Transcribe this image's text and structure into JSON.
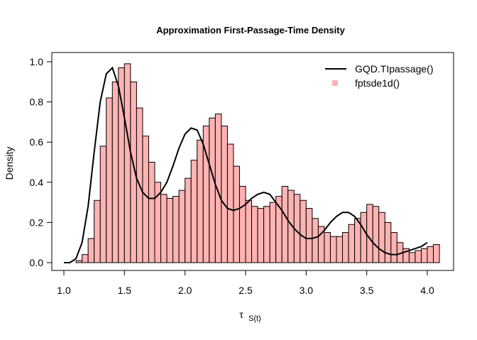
{
  "chart_data": {
    "type": "bar",
    "title": "Approximation First-Passage-Time Density",
    "xlabel": "τ",
    "xlabel_sub": "S(t)",
    "ylabel": "Density",
    "xlim": [
      1.0,
      4.0
    ],
    "ylim": [
      0.0,
      1.0
    ],
    "x_ticks": [
      "1.0",
      "1.5",
      "2.0",
      "2.5",
      "3.0",
      "3.5",
      "4.0"
    ],
    "y_ticks": [
      "0.0",
      "0.2",
      "0.4",
      "0.6",
      "0.8",
      "1.0"
    ],
    "legend_position": "top-right",
    "grid": false,
    "histogram": {
      "name": "fptsde1d()",
      "color": "#ffb3b3",
      "edge_color": "#000000",
      "bin_start": 1.0,
      "bin_width": 0.05,
      "values": [
        0.0,
        0.0,
        0.01,
        0.04,
        0.12,
        0.31,
        0.58,
        0.82,
        0.9,
        0.97,
        0.99,
        0.9,
        0.77,
        0.63,
        0.5,
        0.4,
        0.34,
        0.32,
        0.33,
        0.36,
        0.42,
        0.51,
        0.61,
        0.68,
        0.72,
        0.74,
        0.68,
        0.59,
        0.48,
        0.38,
        0.31,
        0.28,
        0.27,
        0.28,
        0.3,
        0.33,
        0.38,
        0.36,
        0.34,
        0.31,
        0.27,
        0.22,
        0.18,
        0.15,
        0.13,
        0.13,
        0.15,
        0.19,
        0.22,
        0.25,
        0.29,
        0.28,
        0.25,
        0.2,
        0.15,
        0.1,
        0.07,
        0.05,
        0.06,
        0.07,
        0.08,
        0.09
      ]
    },
    "series": [
      {
        "name": "GQD.TIpassage()",
        "color": "#000000",
        "x": [
          1.0,
          1.05,
          1.1,
          1.15,
          1.2,
          1.25,
          1.3,
          1.35,
          1.4,
          1.45,
          1.5,
          1.55,
          1.6,
          1.65,
          1.7,
          1.75,
          1.8,
          1.85,
          1.9,
          1.95,
          2.0,
          2.05,
          2.1,
          2.15,
          2.2,
          2.25,
          2.3,
          2.35,
          2.4,
          2.45,
          2.5,
          2.55,
          2.6,
          2.65,
          2.7,
          2.75,
          2.8,
          2.85,
          2.9,
          2.95,
          3.0,
          3.05,
          3.1,
          3.15,
          3.2,
          3.25,
          3.3,
          3.35,
          3.4,
          3.45,
          3.5,
          3.55,
          3.6,
          3.65,
          3.7,
          3.75,
          3.8,
          3.85,
          3.9,
          3.95,
          4.0
        ],
        "y": [
          0.0,
          0.0,
          0.02,
          0.1,
          0.28,
          0.55,
          0.8,
          0.94,
          0.97,
          0.88,
          0.72,
          0.55,
          0.42,
          0.35,
          0.32,
          0.32,
          0.35,
          0.4,
          0.48,
          0.57,
          0.64,
          0.67,
          0.66,
          0.59,
          0.49,
          0.39,
          0.31,
          0.27,
          0.26,
          0.27,
          0.29,
          0.32,
          0.34,
          0.35,
          0.34,
          0.3,
          0.26,
          0.21,
          0.17,
          0.14,
          0.12,
          0.12,
          0.13,
          0.16,
          0.2,
          0.23,
          0.25,
          0.25,
          0.23,
          0.19,
          0.14,
          0.1,
          0.07,
          0.05,
          0.04,
          0.04,
          0.05,
          0.06,
          0.07,
          0.08,
          0.1
        ]
      }
    ]
  }
}
